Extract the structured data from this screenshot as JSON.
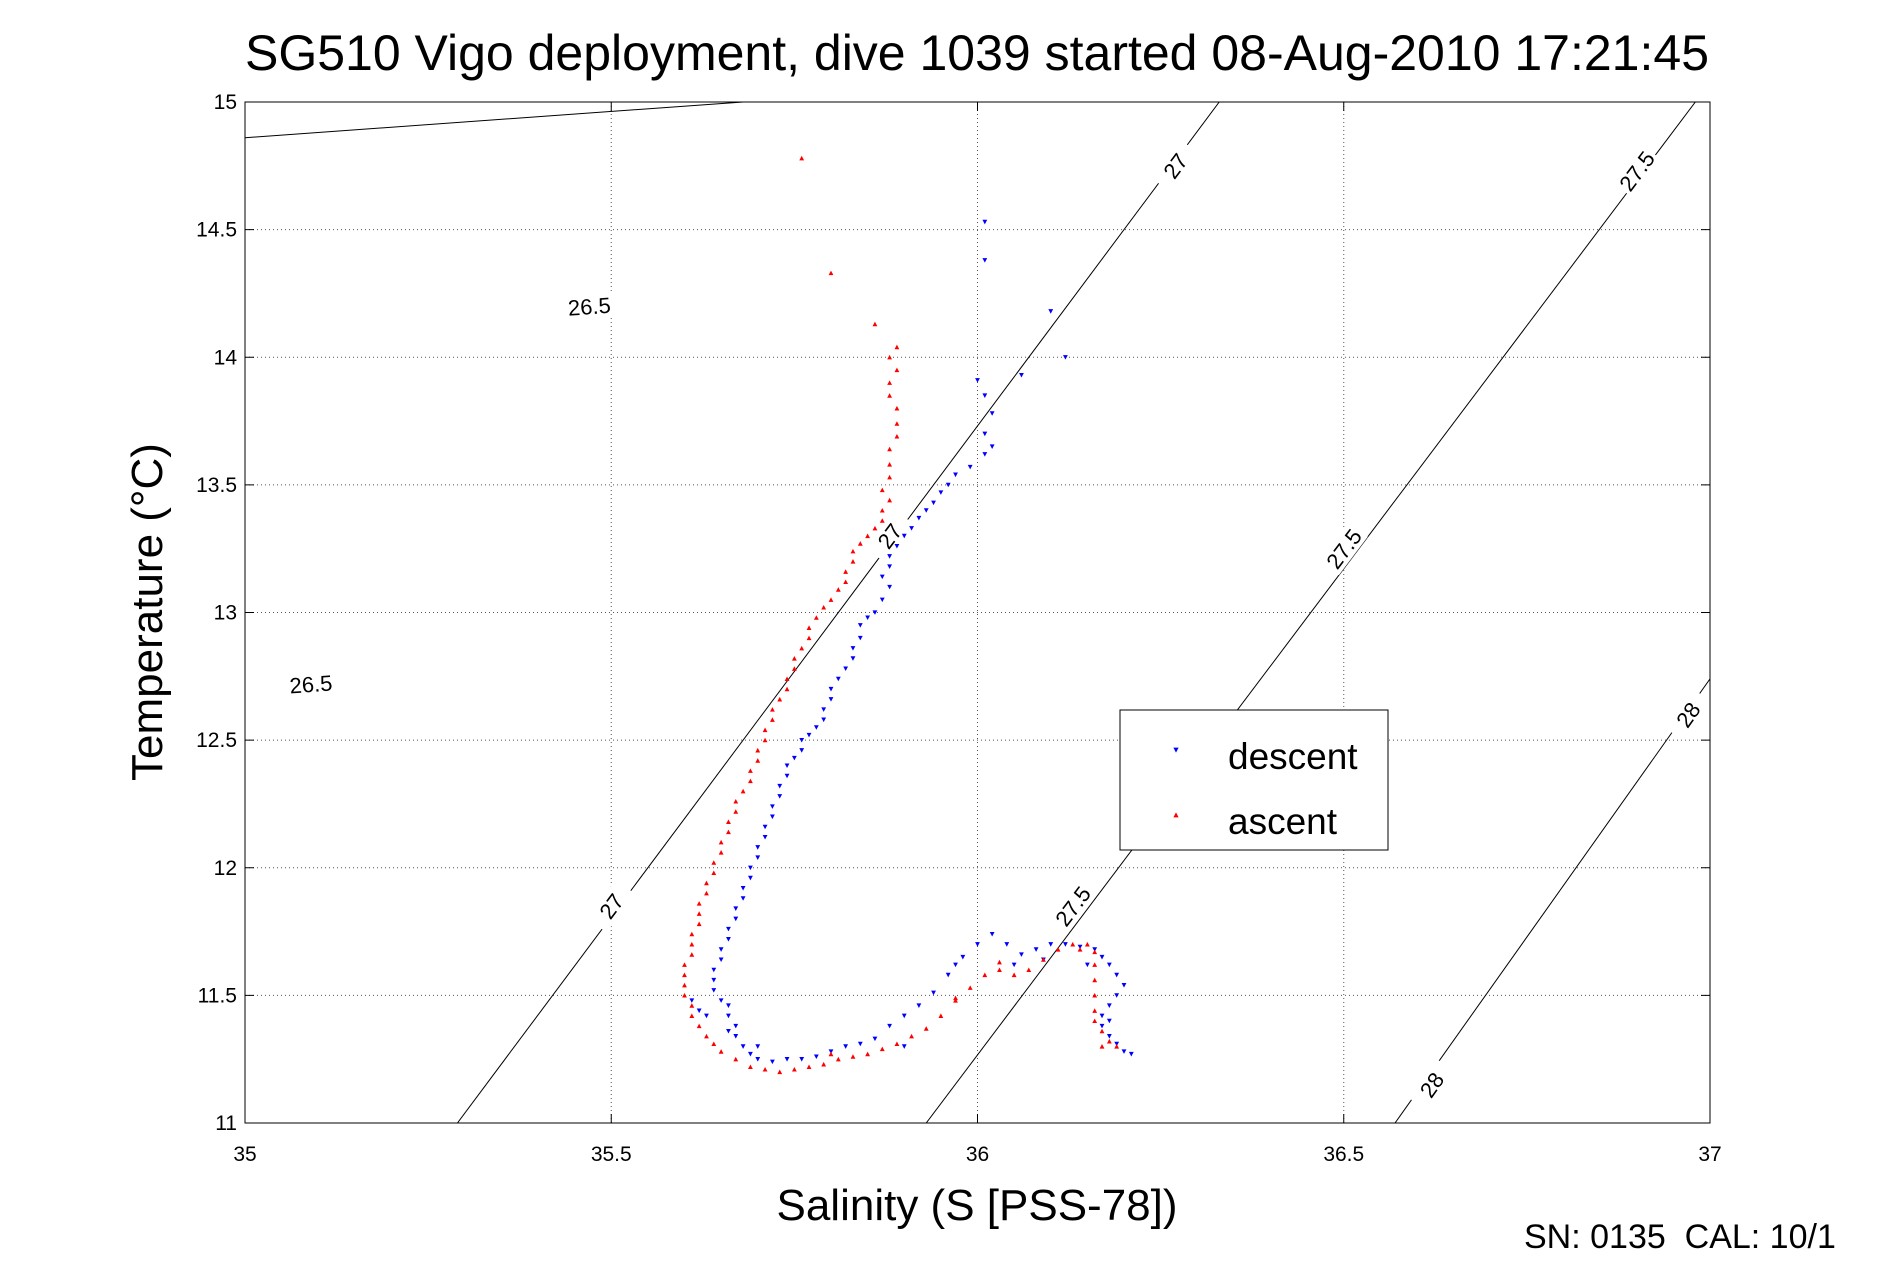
{
  "chart_data": {
    "type": "scatter",
    "title": "SG510 Vigo deployment, dive 1039 started 08-Aug-2010 17:21:45",
    "xlabel": "Salinity (S [PSS-78])",
    "ylabel": "Temperature (°C)",
    "xlim": [
      35,
      37
    ],
    "ylim": [
      11,
      15
    ],
    "xticks": [
      "35",
      "35.5",
      "36",
      "36.5",
      "37"
    ],
    "yticks": [
      "11",
      "11.5",
      "12",
      "12.5",
      "13",
      "13.5",
      "14",
      "14.5",
      "15"
    ],
    "grid": true,
    "legend_position": "right",
    "footer": "SN: 0135  CAL: 10/1",
    "contours": [
      {
        "value": "26.5",
        "p1": [
          35.0,
          14.86
        ],
        "p2": [
          35.68,
          15.0
        ],
        "labels": [
          [
            35.47,
            14.2
          ],
          [
            35.09,
            12.72
          ]
        ]
      },
      {
        "value": "27",
        "p1": [
          35.29,
          11.0
        ],
        "p2": [
          36.33,
          15.0
        ],
        "labels": [
          [
            36.27,
            14.75
          ],
          [
            35.88,
            13.3
          ],
          [
            35.5,
            11.85
          ]
        ]
      },
      {
        "value": "27.5",
        "p1": [
          35.93,
          11.0
        ],
        "p2": [
          36.98,
          15.0
        ],
        "labels": [
          [
            36.9,
            14.73
          ],
          [
            36.5,
            13.25
          ],
          [
            36.13,
            11.85
          ]
        ]
      },
      {
        "value": "28",
        "p1": [
          36.57,
          11.0
        ],
        "p2": [
          37.0,
          12.74
        ],
        "labels": [
          [
            36.97,
            12.6
          ],
          [
            36.62,
            11.15
          ]
        ]
      }
    ],
    "series": [
      {
        "name": "descent",
        "color": "#0000ff",
        "marker": "triangle-down",
        "points": [
          [
            36.01,
            14.53
          ],
          [
            36.01,
            14.38
          ],
          [
            36.1,
            14.18
          ],
          [
            36.12,
            14.0
          ],
          [
            36.06,
            13.93
          ],
          [
            36.0,
            13.91
          ],
          [
            36.01,
            13.85
          ],
          [
            36.02,
            13.78
          ],
          [
            36.01,
            13.7
          ],
          [
            36.02,
            13.65
          ],
          [
            36.01,
            13.62
          ],
          [
            35.99,
            13.57
          ],
          [
            35.97,
            13.54
          ],
          [
            35.96,
            13.5
          ],
          [
            35.95,
            13.47
          ],
          [
            35.94,
            13.43
          ],
          [
            35.93,
            13.4
          ],
          [
            35.92,
            13.37
          ],
          [
            35.91,
            13.33
          ],
          [
            35.9,
            13.3
          ],
          [
            35.89,
            13.26
          ],
          [
            35.88,
            13.22
          ],
          [
            35.88,
            13.18
          ],
          [
            35.87,
            13.14
          ],
          [
            35.88,
            13.1
          ],
          [
            35.87,
            13.05
          ],
          [
            35.86,
            13.0
          ],
          [
            35.85,
            12.98
          ],
          [
            35.84,
            12.95
          ],
          [
            35.84,
            12.9
          ],
          [
            35.83,
            12.86
          ],
          [
            35.83,
            12.82
          ],
          [
            35.82,
            12.78
          ],
          [
            35.81,
            12.74
          ],
          [
            35.8,
            12.7
          ],
          [
            35.8,
            12.66
          ],
          [
            35.79,
            12.62
          ],
          [
            35.79,
            12.58
          ],
          [
            35.78,
            12.55
          ],
          [
            35.77,
            12.52
          ],
          [
            35.76,
            12.5
          ],
          [
            35.76,
            12.46
          ],
          [
            35.75,
            12.43
          ],
          [
            35.74,
            12.4
          ],
          [
            35.74,
            12.36
          ],
          [
            35.73,
            12.32
          ],
          [
            35.73,
            12.28
          ],
          [
            35.72,
            12.24
          ],
          [
            35.72,
            12.2
          ],
          [
            35.71,
            12.16
          ],
          [
            35.71,
            12.12
          ],
          [
            35.7,
            12.08
          ],
          [
            35.7,
            12.04
          ],
          [
            35.69,
            12.0
          ],
          [
            35.69,
            11.96
          ],
          [
            35.68,
            11.92
          ],
          [
            35.68,
            11.88
          ],
          [
            35.67,
            11.84
          ],
          [
            35.67,
            11.8
          ],
          [
            35.66,
            11.76
          ],
          [
            35.66,
            11.72
          ],
          [
            35.65,
            11.68
          ],
          [
            35.65,
            11.64
          ],
          [
            35.64,
            11.6
          ],
          [
            35.64,
            11.56
          ],
          [
            35.64,
            11.52
          ],
          [
            35.65,
            11.48
          ],
          [
            35.66,
            11.46
          ],
          [
            35.66,
            11.42
          ],
          [
            35.67,
            11.38
          ],
          [
            35.67,
            11.34
          ],
          [
            35.68,
            11.3
          ],
          [
            35.69,
            11.27
          ],
          [
            35.7,
            11.25
          ],
          [
            35.72,
            11.24
          ],
          [
            35.74,
            11.25
          ],
          [
            35.76,
            11.25
          ],
          [
            35.78,
            11.26
          ],
          [
            35.8,
            11.28
          ],
          [
            35.82,
            11.3
          ],
          [
            35.84,
            11.31
          ],
          [
            35.86,
            11.33
          ],
          [
            35.88,
            11.38
          ],
          [
            35.9,
            11.42
          ],
          [
            35.92,
            11.46
          ],
          [
            35.94,
            11.51
          ],
          [
            35.96,
            11.58
          ],
          [
            35.98,
            11.65
          ],
          [
            36.0,
            11.7
          ],
          [
            36.02,
            11.74
          ],
          [
            36.04,
            11.7
          ],
          [
            36.06,
            11.66
          ],
          [
            36.08,
            11.68
          ],
          [
            36.1,
            11.7
          ],
          [
            36.12,
            11.7
          ],
          [
            36.14,
            11.69
          ],
          [
            36.16,
            11.68
          ],
          [
            36.17,
            11.65
          ],
          [
            36.18,
            11.62
          ],
          [
            36.19,
            11.58
          ],
          [
            36.2,
            11.54
          ],
          [
            36.19,
            11.5
          ],
          [
            36.18,
            11.46
          ],
          [
            36.17,
            11.42
          ],
          [
            36.17,
            11.38
          ],
          [
            36.18,
            11.34
          ],
          [
            36.19,
            11.31
          ],
          [
            36.2,
            11.28
          ],
          [
            36.21,
            11.27
          ],
          [
            35.61,
            11.48
          ],
          [
            35.62,
            11.44
          ],
          [
            35.63,
            11.42
          ],
          [
            35.66,
            11.36
          ],
          [
            35.7,
            11.3
          ],
          [
            35.9,
            11.3
          ],
          [
            35.97,
            11.62
          ],
          [
            36.05,
            11.62
          ],
          [
            36.09,
            11.64
          ],
          [
            36.15,
            11.62
          ],
          [
            36.18,
            11.4
          ]
        ]
      },
      {
        "name": "ascent",
        "color": "#ff0000",
        "marker": "triangle-up",
        "points": [
          [
            35.76,
            14.78
          ],
          [
            35.8,
            14.33
          ],
          [
            35.86,
            14.13
          ],
          [
            35.89,
            14.04
          ],
          [
            35.88,
            14.0
          ],
          [
            35.89,
            13.95
          ],
          [
            35.88,
            13.9
          ],
          [
            35.88,
            13.85
          ],
          [
            35.89,
            13.8
          ],
          [
            35.89,
            13.74
          ],
          [
            35.89,
            13.69
          ],
          [
            35.88,
            13.64
          ],
          [
            35.88,
            13.58
          ],
          [
            35.88,
            13.53
          ],
          [
            35.87,
            13.48
          ],
          [
            35.88,
            13.44
          ],
          [
            35.87,
            13.4
          ],
          [
            35.87,
            13.36
          ],
          [
            35.86,
            13.33
          ],
          [
            35.85,
            13.3
          ],
          [
            35.84,
            13.27
          ],
          [
            35.83,
            13.24
          ],
          [
            35.83,
            13.2
          ],
          [
            35.82,
            13.16
          ],
          [
            35.82,
            13.12
          ],
          [
            35.81,
            13.09
          ],
          [
            35.8,
            13.05
          ],
          [
            35.79,
            13.02
          ],
          [
            35.78,
            12.98
          ],
          [
            35.77,
            12.94
          ],
          [
            35.77,
            12.9
          ],
          [
            35.76,
            12.86
          ],
          [
            35.75,
            12.82
          ],
          [
            35.75,
            12.78
          ],
          [
            35.74,
            12.74
          ],
          [
            35.74,
            12.7
          ],
          [
            35.73,
            12.66
          ],
          [
            35.72,
            12.62
          ],
          [
            35.72,
            12.58
          ],
          [
            35.71,
            12.54
          ],
          [
            35.71,
            12.5
          ],
          [
            35.7,
            12.46
          ],
          [
            35.7,
            12.42
          ],
          [
            35.69,
            12.38
          ],
          [
            35.69,
            12.34
          ],
          [
            35.68,
            12.3
          ],
          [
            35.67,
            12.26
          ],
          [
            35.67,
            12.22
          ],
          [
            35.66,
            12.18
          ],
          [
            35.66,
            12.14
          ],
          [
            35.65,
            12.1
          ],
          [
            35.65,
            12.06
          ],
          [
            35.64,
            12.02
          ],
          [
            35.64,
            11.98
          ],
          [
            35.63,
            11.94
          ],
          [
            35.63,
            11.9
          ],
          [
            35.62,
            11.86
          ],
          [
            35.62,
            11.82
          ],
          [
            35.62,
            11.78
          ],
          [
            35.61,
            11.74
          ],
          [
            35.61,
            11.7
          ],
          [
            35.61,
            11.66
          ],
          [
            35.6,
            11.62
          ],
          [
            35.6,
            11.58
          ],
          [
            35.6,
            11.54
          ],
          [
            35.6,
            11.5
          ],
          [
            35.61,
            11.46
          ],
          [
            35.61,
            11.42
          ],
          [
            35.62,
            11.38
          ],
          [
            35.63,
            11.34
          ],
          [
            35.64,
            11.31
          ],
          [
            35.65,
            11.28
          ],
          [
            35.67,
            11.25
          ],
          [
            35.69,
            11.22
          ],
          [
            35.71,
            11.21
          ],
          [
            35.73,
            11.2
          ],
          [
            35.75,
            11.21
          ],
          [
            35.77,
            11.22
          ],
          [
            35.79,
            11.23
          ],
          [
            35.81,
            11.25
          ],
          [
            35.83,
            11.26
          ],
          [
            35.85,
            11.27
          ],
          [
            35.87,
            11.29
          ],
          [
            35.89,
            11.31
          ],
          [
            35.91,
            11.34
          ],
          [
            35.93,
            11.37
          ],
          [
            35.95,
            11.42
          ],
          [
            35.97,
            11.48
          ],
          [
            35.99,
            11.53
          ],
          [
            36.01,
            11.58
          ],
          [
            36.03,
            11.6
          ],
          [
            36.05,
            11.58
          ],
          [
            36.07,
            11.6
          ],
          [
            36.09,
            11.64
          ],
          [
            36.11,
            11.68
          ],
          [
            36.13,
            11.7
          ],
          [
            36.15,
            11.7
          ],
          [
            36.16,
            11.67
          ],
          [
            36.16,
            11.62
          ],
          [
            36.16,
            11.56
          ],
          [
            36.16,
            11.5
          ],
          [
            36.16,
            11.44
          ],
          [
            36.16,
            11.4
          ],
          [
            36.17,
            11.36
          ],
          [
            36.18,
            11.32
          ],
          [
            36.19,
            11.3
          ],
          [
            35.8,
            11.27
          ],
          [
            35.97,
            11.49
          ],
          [
            36.03,
            11.63
          ],
          [
            36.14,
            11.68
          ],
          [
            36.17,
            11.3
          ]
        ]
      }
    ]
  }
}
